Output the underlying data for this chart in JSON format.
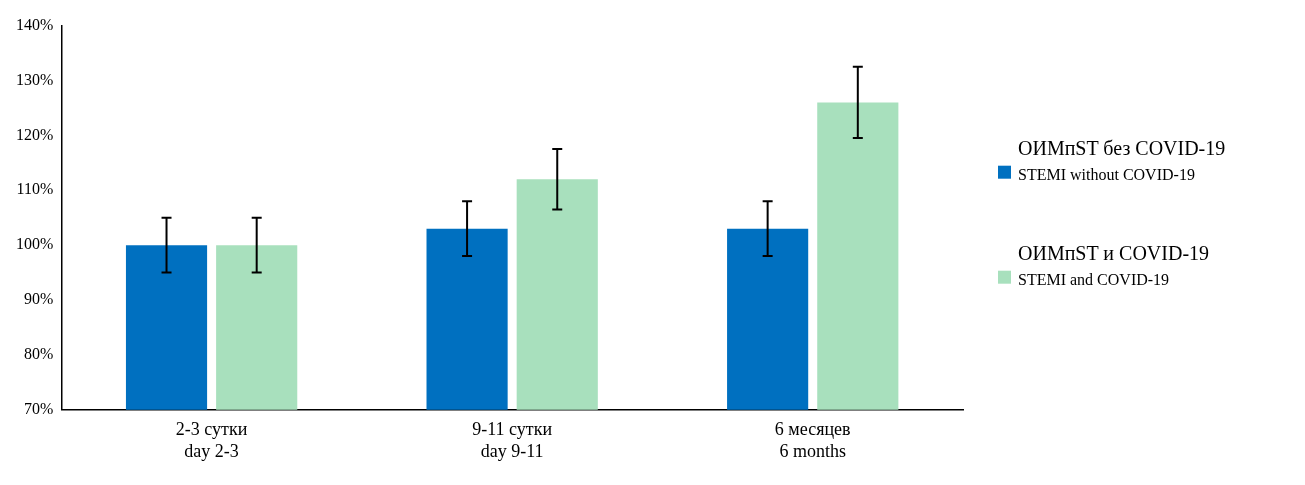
{
  "chart_data": {
    "type": "bar",
    "categories": [
      "2-3 сутки\nday 2-3",
      "9-11 сутки\nday 9-11",
      "6 месяцев\n6 months"
    ],
    "series": [
      {
        "name": "ОИМпST без COVID-19\nSTEMI without COVID-19",
        "color": "#0070c0",
        "values": [
          100,
          103,
          103
        ],
        "errors": [
          5,
          5,
          5
        ]
      },
      {
        "name": "ОИМпST и COVID-19\nSTEMI and COVID-19",
        "color": "#a8e0bd",
        "values": [
          100,
          112,
          126
        ],
        "errors": [
          5,
          5.5,
          6.5
        ]
      }
    ],
    "ylim": [
      70,
      140
    ],
    "yticks": [
      {
        "value": 70,
        "label": "70%"
      },
      {
        "value": 80,
        "label": "80%"
      },
      {
        "value": 90,
        "label": "90%"
      },
      {
        "value": 100,
        "label": "100%"
      },
      {
        "value": 110,
        "label": "110%"
      },
      {
        "value": 120,
        "label": "120%"
      },
      {
        "value": 130,
        "label": "130%"
      },
      {
        "value": 140,
        "label": "140%"
      }
    ],
    "grid": false,
    "legend": "right"
  }
}
